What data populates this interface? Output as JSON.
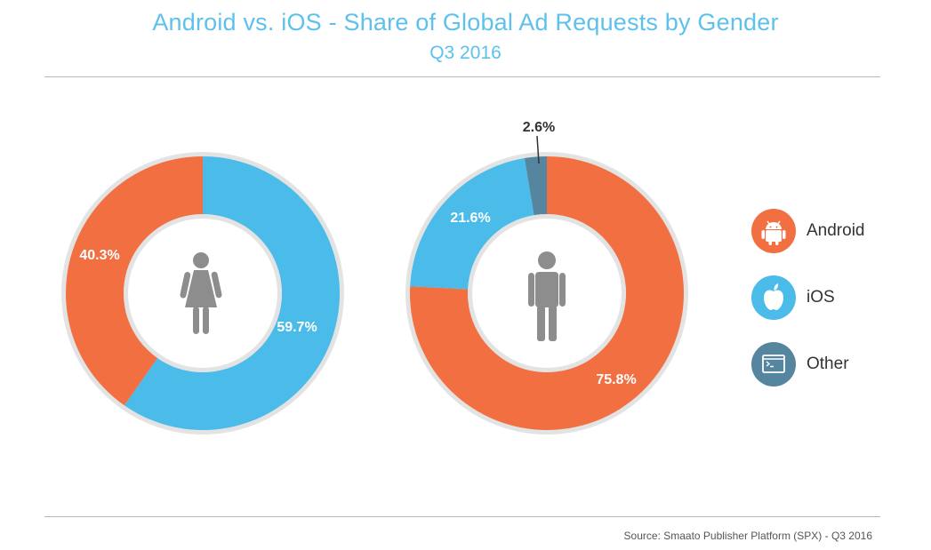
{
  "title": "Android vs. iOS - Share of Global Ad Requests by Gender",
  "subtitle": "Q3 2016",
  "source": "Source: Smaato Publisher Platform (SPX) - Q3 2016",
  "colors": {
    "android": "#f26f41",
    "ios": "#4bbbea",
    "other": "#55859f",
    "figure": "#8d8d8d",
    "ring": "#e3e3e3"
  },
  "chart_data": [
    {
      "type": "pie",
      "variant": "donut",
      "group_icon": "female-figure-icon",
      "series": [
        {
          "name": "iOS",
          "value": 59.7,
          "label": "59.7%"
        },
        {
          "name": "Android",
          "value": 40.3,
          "label": "40.3%"
        }
      ]
    },
    {
      "type": "pie",
      "variant": "donut",
      "group_icon": "male-figure-icon",
      "series": [
        {
          "name": "Android",
          "value": 75.8,
          "label": "75.8%"
        },
        {
          "name": "iOS",
          "value": 21.6,
          "label": "21.6%"
        },
        {
          "name": "Other",
          "value": 2.6,
          "label": "2.6%"
        }
      ]
    }
  ],
  "legend": [
    {
      "label": "Android",
      "icon": "android-icon"
    },
    {
      "label": "iOS",
      "icon": "apple-icon"
    },
    {
      "label": "Other",
      "icon": "terminal-icon"
    }
  ]
}
